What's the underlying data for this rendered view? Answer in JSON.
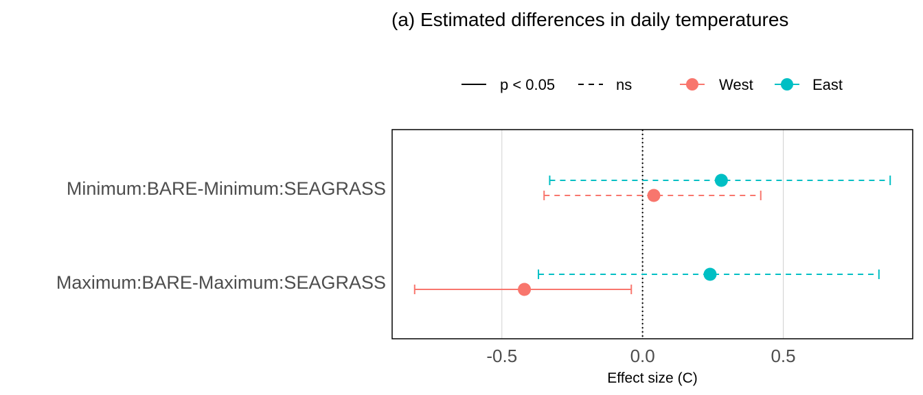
{
  "chart_data": {
    "type": "scatter",
    "title": "(a) Estimated differences in daily temperatures",
    "xlabel": "Effect size (C)",
    "ylabel": "",
    "xlim": [
      -0.89,
      0.96
    ],
    "x_ticks": [
      -0.5,
      0.0,
      0.5
    ],
    "x_tick_labels": [
      "-0.5",
      "0.0",
      "0.5"
    ],
    "categories": [
      "Minimum:BARE-Minimum:SEAGRASS",
      "Maximum:BARE-Maximum:SEAGRASS"
    ],
    "reference_line": 0.0,
    "vertical_grid": true,
    "legend": {
      "position": "top",
      "linetype_entries": [
        {
          "label": "p < 0.05",
          "style": "solid"
        },
        {
          "label": "ns",
          "style": "dashed"
        }
      ]
    },
    "series": [
      {
        "name": "West",
        "color": "#F8766D",
        "points": [
          {
            "category": "Minimum:BARE-Minimum:SEAGRASS",
            "estimate": 0.04,
            "lower": -0.35,
            "upper": 0.42,
            "significant": false
          },
          {
            "category": "Maximum:BARE-Maximum:SEAGRASS",
            "estimate": -0.42,
            "lower": -0.81,
            "upper": -0.04,
            "significant": true
          }
        ]
      },
      {
        "name": "East",
        "color": "#00BFC4",
        "points": [
          {
            "category": "Minimum:BARE-Minimum:SEAGRASS",
            "estimate": 0.28,
            "lower": -0.33,
            "upper": 0.88,
            "significant": false
          },
          {
            "category": "Maximum:BARE-Maximum:SEAGRASS",
            "estimate": 0.24,
            "lower": -0.37,
            "upper": 0.84,
            "significant": false
          }
        ]
      }
    ]
  }
}
